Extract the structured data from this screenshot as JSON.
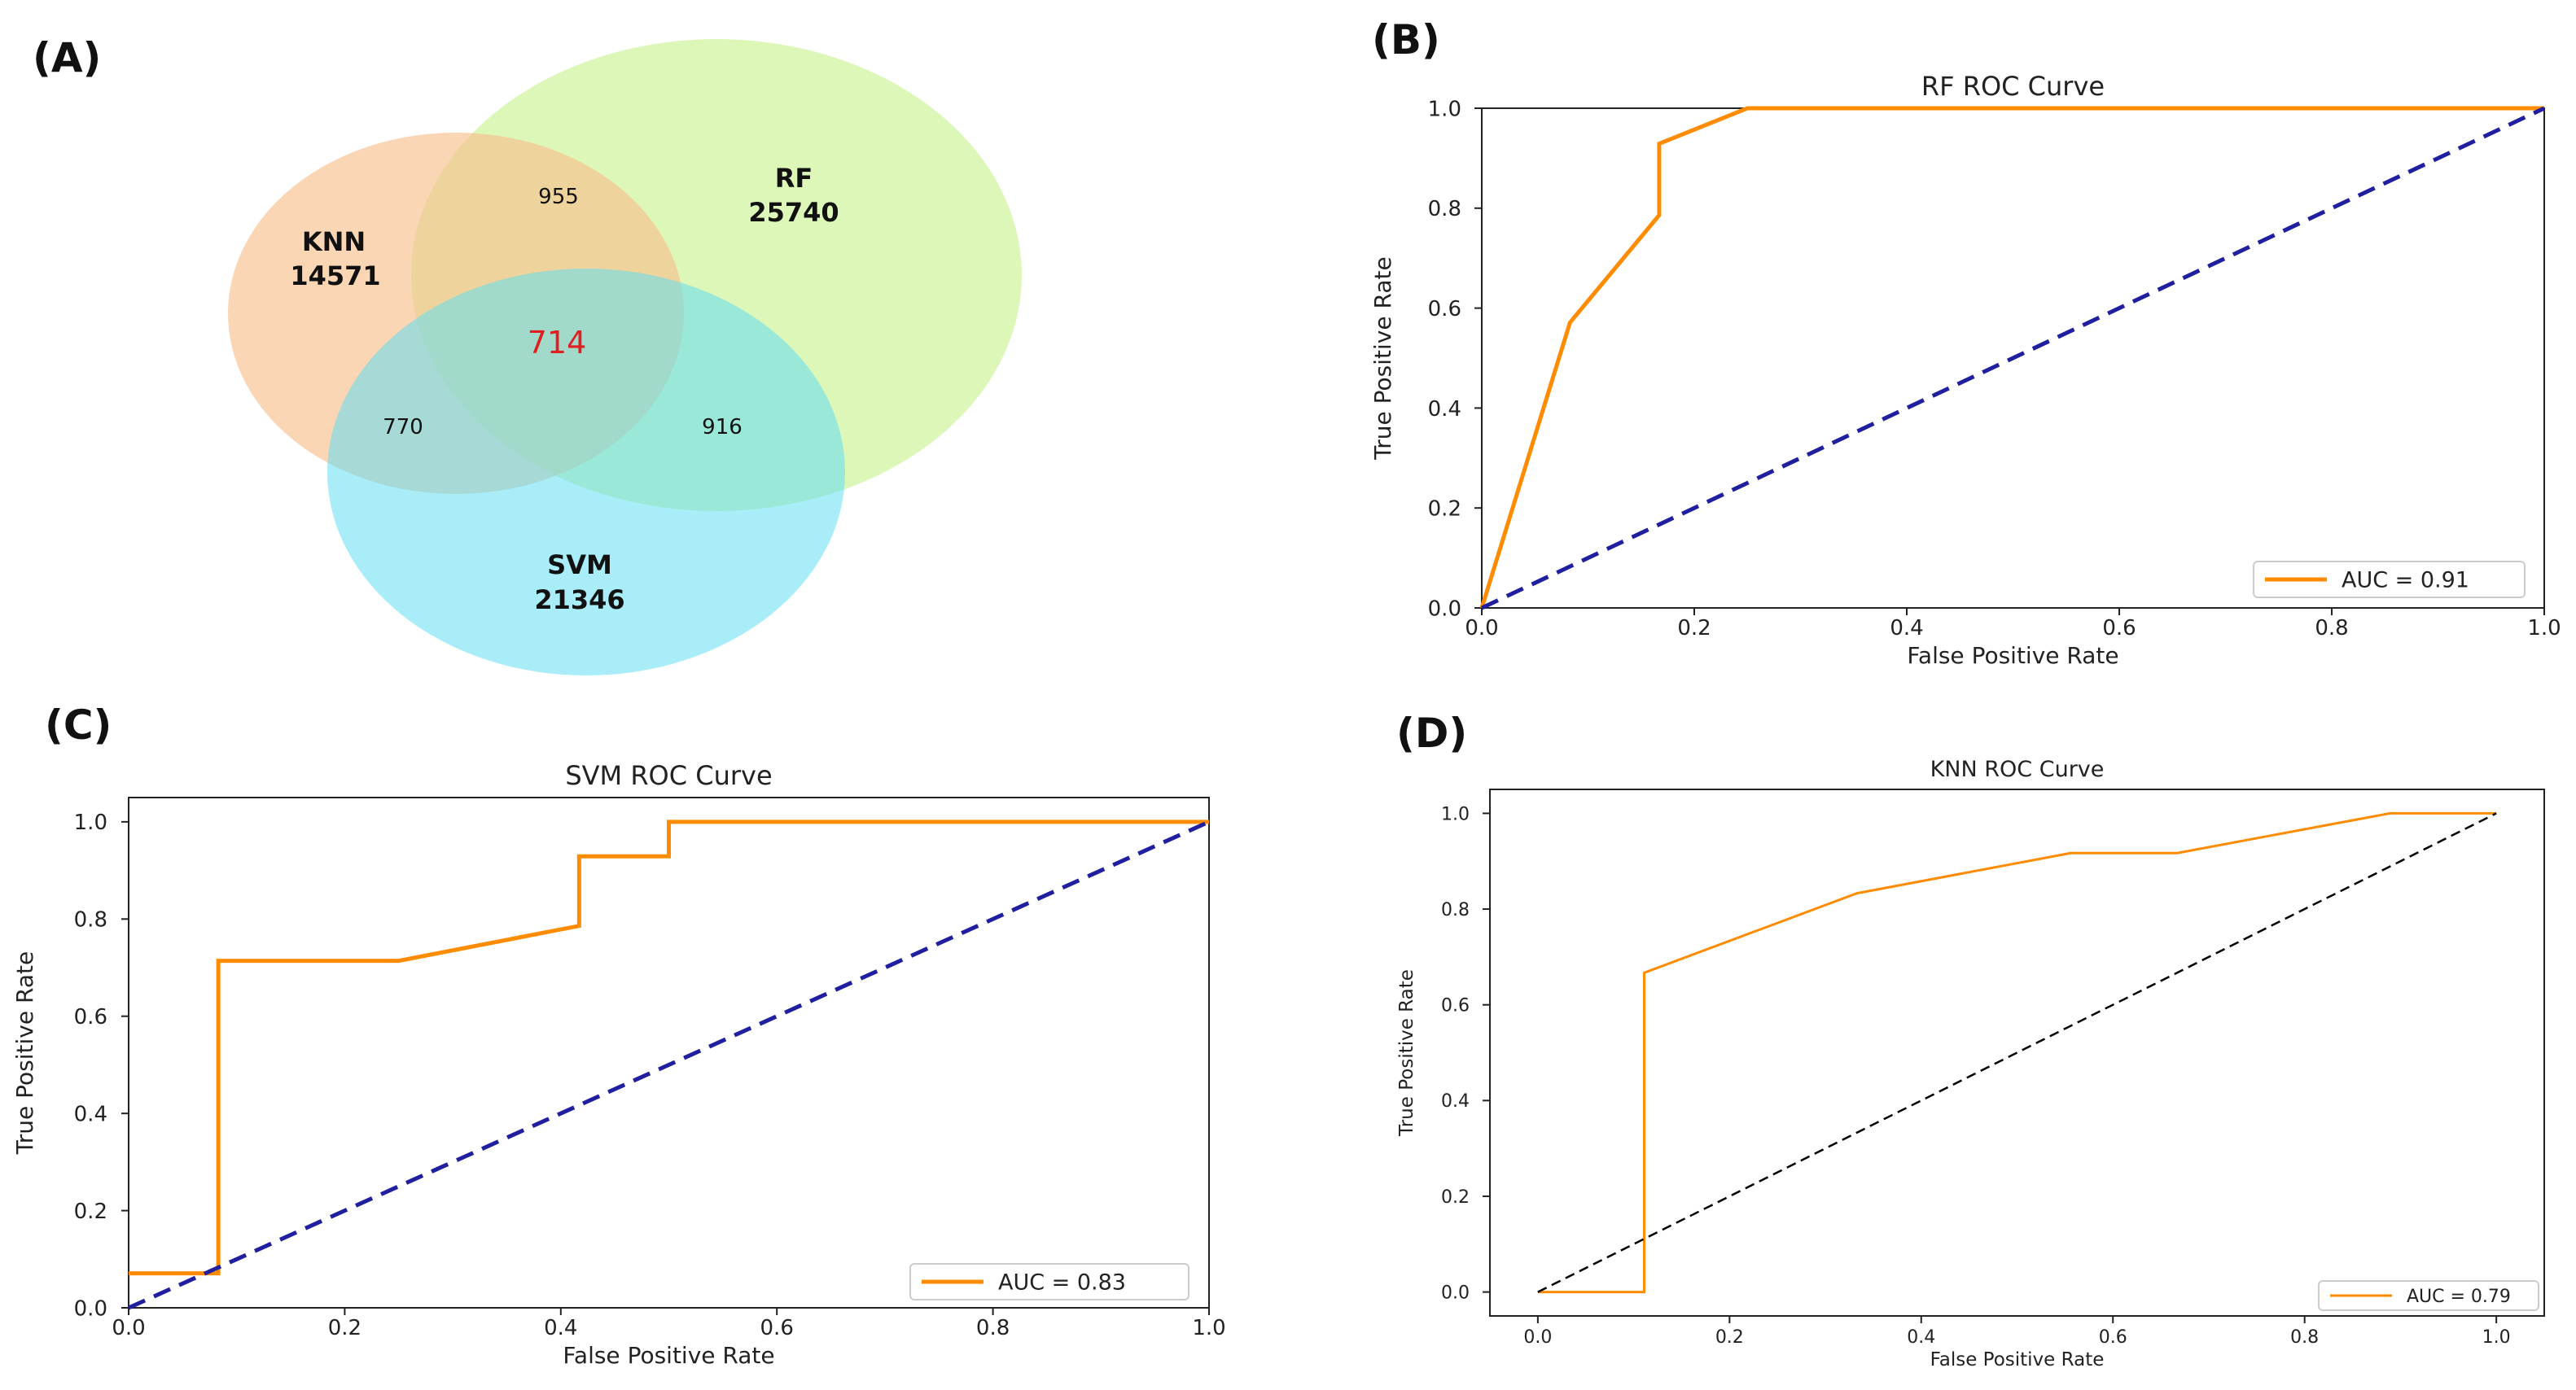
{
  "panels": {
    "a": "(A)",
    "b": "(B)",
    "c": "(C)",
    "d": "(D)"
  },
  "venn": {
    "sets": [
      {
        "name": "KNN",
        "count": "14571",
        "color": "#f7c08c"
      },
      {
        "name": "RF",
        "count": "25740",
        "color": "#c6f28a"
      },
      {
        "name": "SVM",
        "count": "21346",
        "color": "#63dff2"
      }
    ],
    "knn_rf": "955",
    "knn_svm": "770",
    "rf_svm": "916",
    "all": "714",
    "highlight_color": "#e02020"
  },
  "colors": {
    "roc": "#ff8c00",
    "diag_dark": "#1f1fa0",
    "diag_black": "#000000"
  },
  "chart_data": [
    {
      "id": "rf",
      "type": "line",
      "title": "RF ROC Curve",
      "xlabel": "False Positive Rate",
      "ylabel": "True Positive Rate",
      "xlim": [
        0,
        1
      ],
      "ylim": [
        0,
        1
      ],
      "x_ticks": [
        "0.0",
        "0.2",
        "0.4",
        "0.6",
        "0.8",
        "1.0"
      ],
      "y_ticks": [
        "0.0",
        "0.2",
        "0.4",
        "0.6",
        "0.8",
        "1.0"
      ],
      "legend": "AUC = 0.91",
      "legend_position": "lower-right",
      "series": [
        {
          "name": "ROC",
          "x": [
            0,
            0.083,
            0.167,
            0.167,
            0.25,
            1.0
          ],
          "y": [
            0,
            0.571,
            0.786,
            0.929,
            1.0,
            1.0
          ]
        },
        {
          "name": "diagonal",
          "x": [
            0,
            1
          ],
          "y": [
            0,
            1
          ]
        }
      ]
    },
    {
      "id": "svm",
      "type": "line",
      "title": "SVM ROC Curve",
      "xlabel": "False Positive Rate",
      "ylabel": "True Positive Rate",
      "xlim": [
        0,
        1
      ],
      "ylim": [
        0,
        1.05
      ],
      "x_ticks": [
        "0.0",
        "0.2",
        "0.4",
        "0.6",
        "0.8",
        "1.0"
      ],
      "y_ticks": [
        "0.0",
        "0.2",
        "0.4",
        "0.6",
        "0.8",
        "1.0"
      ],
      "legend": "AUC = 0.83",
      "legend_position": "lower-right",
      "series": [
        {
          "name": "ROC",
          "x": [
            0,
            0.083,
            0.083,
            0.25,
            0.417,
            0.417,
            0.5,
            0.5,
            1.0
          ],
          "y": [
            0.071,
            0.071,
            0.714,
            0.714,
            0.786,
            0.929,
            0.929,
            1.0,
            1.0
          ]
        },
        {
          "name": "diagonal",
          "x": [
            0,
            1
          ],
          "y": [
            0,
            1
          ]
        }
      ]
    },
    {
      "id": "knn",
      "type": "line",
      "title": "KNN ROC Curve",
      "xlabel": "False Positive Rate",
      "ylabel": "True Positive Rate",
      "xlim": [
        -0.05,
        1.05
      ],
      "ylim": [
        -0.05,
        1.05
      ],
      "x_ticks": [
        "0.0",
        "0.2",
        "0.4",
        "0.6",
        "0.8",
        "1.0"
      ],
      "y_ticks": [
        "0.0",
        "0.2",
        "0.4",
        "0.6",
        "0.8",
        "1.0"
      ],
      "legend": "AUC = 0.79",
      "legend_position": "lower-right",
      "series": [
        {
          "name": "ROC",
          "x": [
            0,
            0.111,
            0.111,
            0.333,
            0.556,
            0.667,
            0.889,
            1.0
          ],
          "y": [
            0,
            0,
            0.667,
            0.833,
            0.917,
            0.917,
            1.0,
            1.0
          ]
        },
        {
          "name": "diagonal",
          "x": [
            0,
            1
          ],
          "y": [
            0,
            1
          ]
        }
      ]
    }
  ]
}
